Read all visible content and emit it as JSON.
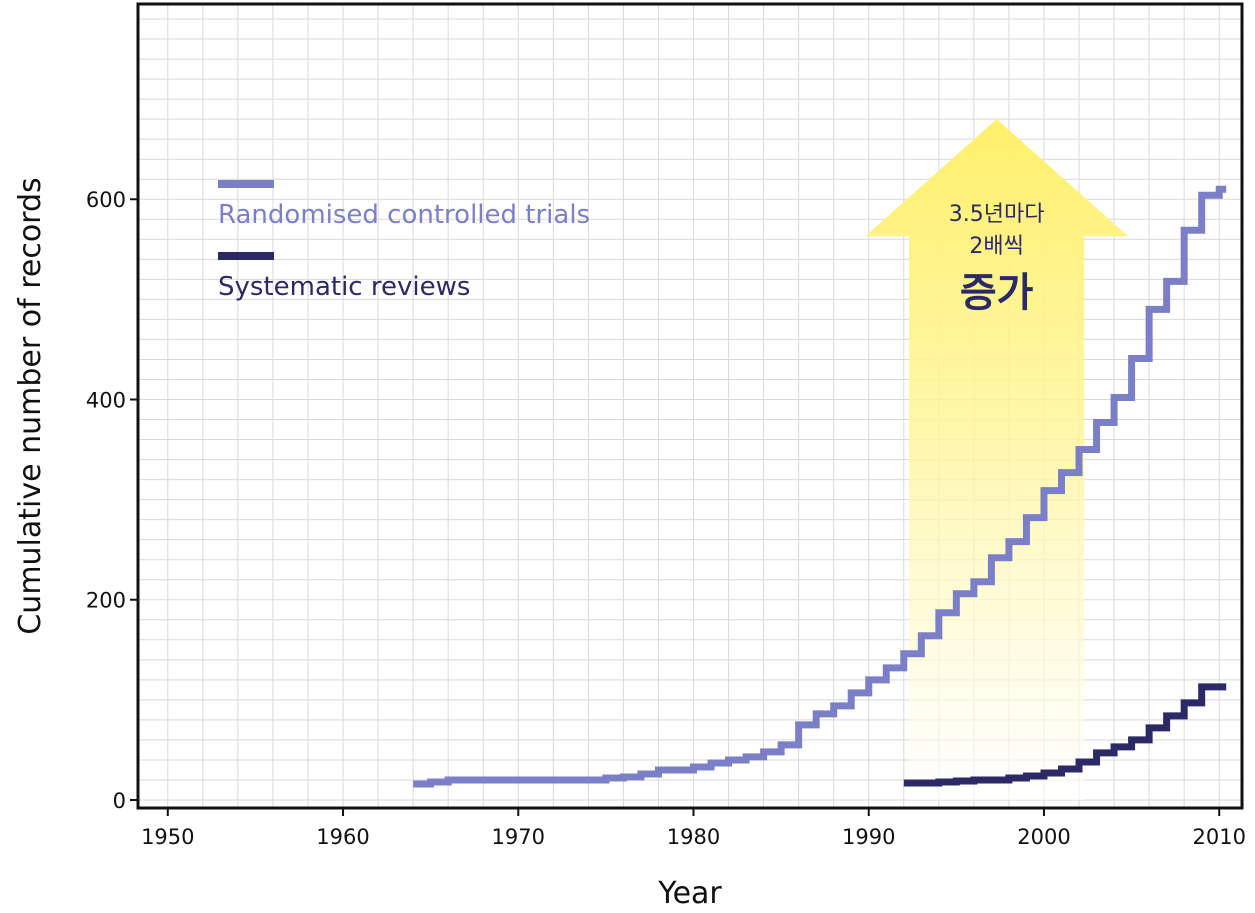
{
  "chart_data": {
    "type": "line",
    "xlabel": "Year",
    "ylabel": "Cumulative number of records",
    "xlim": [
      1948.3,
      2011.3
    ],
    "ylim": [
      -8,
      795
    ],
    "x_ticks": [
      "1950",
      "1960",
      "1970",
      "1980",
      "1990",
      "2000",
      "2010"
    ],
    "y_ticks": [
      "0",
      "200",
      "400",
      "600"
    ],
    "grid": true,
    "legend_position": "top-left",
    "series": [
      {
        "name": "Randomised controlled trials",
        "color": "#7b7fc8",
        "step": true,
        "points": [
          [
            1964,
            16
          ],
          [
            1965,
            18
          ],
          [
            1966,
            20
          ],
          [
            1974,
            20
          ],
          [
            1975,
            22
          ],
          [
            1976,
            23
          ],
          [
            1977,
            26
          ],
          [
            1978,
            30
          ],
          [
            1979,
            30
          ],
          [
            1980,
            33
          ],
          [
            1981,
            37
          ],
          [
            1982,
            40
          ],
          [
            1983,
            43
          ],
          [
            1984,
            48
          ],
          [
            1985,
            55
          ],
          [
            1986,
            75
          ],
          [
            1987,
            86
          ],
          [
            1988,
            94
          ],
          [
            1989,
            107
          ],
          [
            1990,
            120
          ],
          [
            1991,
            132
          ],
          [
            1992,
            146
          ],
          [
            1993,
            164
          ],
          [
            1994,
            187
          ],
          [
            1995,
            206
          ],
          [
            1996,
            218
          ],
          [
            1997,
            242
          ],
          [
            1998,
            258
          ],
          [
            1999,
            282
          ],
          [
            2000,
            309
          ],
          [
            2001,
            327
          ],
          [
            2002,
            350
          ],
          [
            2003,
            377
          ],
          [
            2004,
            402
          ],
          [
            2005,
            441
          ],
          [
            2006,
            490
          ],
          [
            2007,
            518
          ],
          [
            2008,
            569
          ],
          [
            2009,
            604
          ],
          [
            2010,
            610
          ]
        ]
      },
      {
        "name": "Systematic reviews",
        "color": "#2b2a66",
        "step": true,
        "points": [
          [
            1992,
            17
          ],
          [
            1994,
            18
          ],
          [
            1995,
            19
          ],
          [
            1996,
            20
          ],
          [
            1998,
            22
          ],
          [
            1999,
            24
          ],
          [
            2000,
            27
          ],
          [
            2001,
            31
          ],
          [
            2002,
            38
          ],
          [
            2003,
            47
          ],
          [
            2004,
            53
          ],
          [
            2005,
            60
          ],
          [
            2006,
            72
          ],
          [
            2007,
            84
          ],
          [
            2008,
            97
          ],
          [
            2009,
            113
          ],
          [
            2010,
            113
          ]
        ]
      }
    ],
    "annotation": {
      "line1": "3.5년마다",
      "line2": "2배씩",
      "line3": "증가",
      "x_from": 1992.3,
      "x_to": 2002.3,
      "tip_year": 1997.3,
      "tip_value": 680,
      "head_base_value": 563,
      "arrow_color": "#fff27a"
    }
  }
}
